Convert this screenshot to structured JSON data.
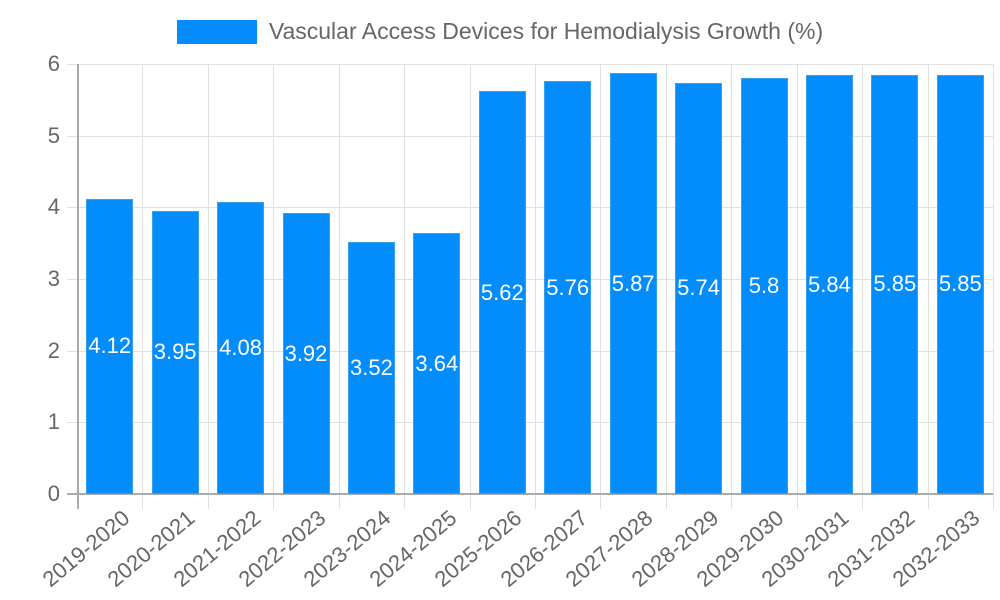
{
  "legend": {
    "label": "Vascular Access Devices for Hemodialysis Growth (%)",
    "color": "#038cfc"
  },
  "y_axis": {
    "ticks": [
      "0",
      "1",
      "2",
      "3",
      "4",
      "5",
      "6"
    ]
  },
  "bars": [
    {
      "category": "2019-2020",
      "label": "4.12"
    },
    {
      "category": "2020-2021",
      "label": "3.95"
    },
    {
      "category": "2021-2022",
      "label": "4.08"
    },
    {
      "category": "2022-2023",
      "label": "3.92"
    },
    {
      "category": "2023-2024",
      "label": "3.52"
    },
    {
      "category": "2024-2025",
      "label": "3.64"
    },
    {
      "category": "2025-2026",
      "label": "5.62"
    },
    {
      "category": "2026-2027",
      "label": "5.76"
    },
    {
      "category": "2027-2028",
      "label": "5.87"
    },
    {
      "category": "2028-2029",
      "label": "5.74"
    },
    {
      "category": "2029-2030",
      "label": "5.8"
    },
    {
      "category": "2030-2031",
      "label": "5.84"
    },
    {
      "category": "2031-2032",
      "label": "5.85"
    },
    {
      "category": "2032-2033",
      "label": "5.85"
    }
  ],
  "chart_data": {
    "type": "bar",
    "title": "",
    "categories": [
      "2019-2020",
      "2020-2021",
      "2021-2022",
      "2022-2023",
      "2023-2024",
      "2024-2025",
      "2025-2026",
      "2026-2027",
      "2027-2028",
      "2028-2029",
      "2029-2030",
      "2030-2031",
      "2031-2032",
      "2032-2033"
    ],
    "series": [
      {
        "name": "Vascular Access Devices for Hemodialysis Growth (%)",
        "color": "#038cfc",
        "values": [
          4.12,
          3.95,
          4.08,
          3.92,
          3.52,
          3.64,
          5.62,
          5.76,
          5.87,
          5.74,
          5.8,
          5.84,
          5.85,
          5.85
        ]
      }
    ],
    "xlabel": "",
    "ylabel": "",
    "ylim": [
      0,
      6
    ],
    "yticks": [
      0,
      1,
      2,
      3,
      4,
      5,
      6
    ],
    "grid": true,
    "legend_position": "top",
    "data_labels": true
  }
}
